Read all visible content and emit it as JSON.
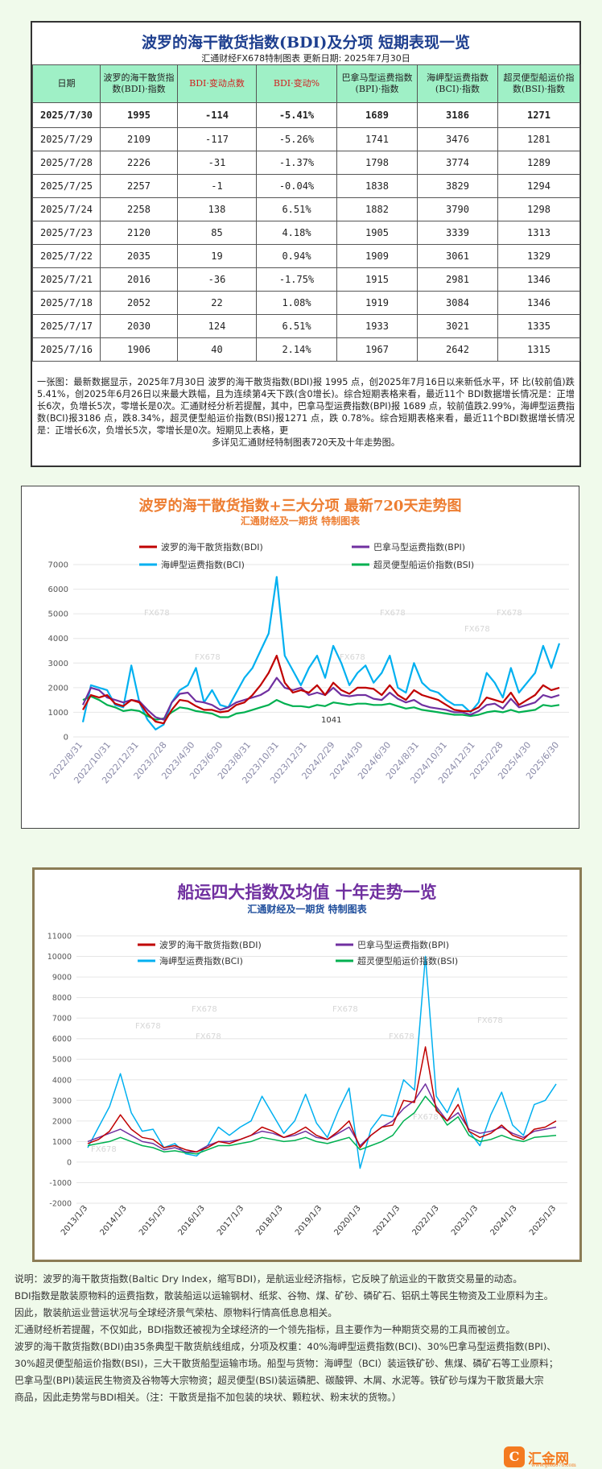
{
  "table": {
    "title": "波罗的海干散货指数(BDI)及分项 短期表现一览",
    "subtitle": "汇通财经FX678特制图表 更新日期: 2025年7月30日",
    "headers": [
      "日期",
      "波罗的海干散货指数(BDI)·指数",
      "BDI·变动点数",
      "BDI·变动%",
      "巴拿马型运费指数(BPI)·指数",
      "海岬型运费指数(BCI)·指数",
      "超灵便型船运价指数(BSI)·指数"
    ],
    "rows": [
      [
        "2025/7/30",
        "1995",
        "-114",
        "-5.41%",
        "1689",
        "3186",
        "1271"
      ],
      [
        "2025/7/29",
        "2109",
        "-117",
        "-5.26%",
        "1741",
        "3476",
        "1281"
      ],
      [
        "2025/7/28",
        "2226",
        "-31",
        "-1.37%",
        "1798",
        "3774",
        "1289"
      ],
      [
        "2025/7/25",
        "2257",
        "-1",
        "-0.04%",
        "1838",
        "3829",
        "1294"
      ],
      [
        "2025/7/24",
        "2258",
        "138",
        "6.51%",
        "1882",
        "3790",
        "1298"
      ],
      [
        "2025/7/23",
        "2120",
        "85",
        "4.18%",
        "1905",
        "3339",
        "1313"
      ],
      [
        "2025/7/22",
        "2035",
        "19",
        "0.94%",
        "1909",
        "3061",
        "1329"
      ],
      [
        "2025/7/21",
        "2016",
        "-36",
        "-1.75%",
        "1915",
        "2981",
        "1346"
      ],
      [
        "2025/7/18",
        "2052",
        "22",
        "1.08%",
        "1919",
        "3084",
        "1346"
      ],
      [
        "2025/7/17",
        "2030",
        "124",
        "6.51%",
        "1933",
        "3021",
        "1335"
      ],
      [
        "2025/7/16",
        "1906",
        "40",
        "2.14%",
        "1967",
        "2642",
        "1315"
      ]
    ],
    "note_lines": [
      "一张图：最新数据显示，2025年7月30日 波罗的海干散货指数(BDI)报 1995 点，创2025年7月16日以来新低水平，环",
      "比(较前值)跌5.41%，创2025年6月26日以来最大跌幅，且为连续第4天下跌(含0增长)。综合短期表格来看，最近11个",
      "BDI数据增长情况是：正增长6次，负增长5次，零增长是0次。汇通财经分析若提醒，其中，巴拿马型运费指数(BPI)报",
      "1689 点，较前值跌2.99%，海岬型运费指数(BCI)报3186 点，跌8.34%，超灵便型船运价指数(BSI)报1271 点，跌",
      "0.78%。综合短期表格来看，最近11个BDI数据增长情况是：正增长6次，负增长5次，零增长是0次。短期见上表格，更",
      "多详见汇通财经特制图表720天及十年走势图。"
    ]
  },
  "colors": {
    "bdi": "#c00000",
    "bpi": "#7030a0",
    "bci": "#00b0f0",
    "bsi": "#00b050",
    "title1": "#ed7d31",
    "title2": "#7030a0",
    "sub": "#1f4e9c"
  },
  "chart_data": [
    {
      "type": "line",
      "title": "波罗的海干散货指数+三大分项 最新720天走势图",
      "subtitle": "汇通财经及一期货 特制图表",
      "legend": [
        "波罗的海干散货指数(BDI)",
        "巴拿马型运费指数(BPI)",
        "海岬型运费指数(BCI)",
        "超灵便型船运价指数(BSI)"
      ],
      "legend_position": "top",
      "ylim": [
        0,
        7000
      ],
      "yticks": [
        "0",
        "1000",
        "2000",
        "3000",
        "4000",
        "5000",
        "6000",
        "7000"
      ],
      "xticks": [
        "2022/8/31",
        "2022/10/31",
        "2022/12/31",
        "2023/2/28",
        "2023/4/30",
        "2023/6/30",
        "2023/8/31",
        "2023/10/31",
        "2023/12/31",
        "2024/2/29",
        "2024/4/30",
        "2024/6/30",
        "2024/8/31",
        "2024/10/31",
        "2024/12/31",
        "2025/2/28",
        "2025/4/30",
        "2025/6/30"
      ],
      "annotation": "1041",
      "watermark": "FX678",
      "grid": true,
      "series": [
        {
          "name": "波罗的海干散货指数(BDI)",
          "values": [
            1100,
            1700,
            1600,
            1700,
            1350,
            1250,
            1500,
            1400,
            950,
            620,
            550,
            1100,
            1500,
            1450,
            1250,
            1100,
            1100,
            1000,
            1050,
            1300,
            1400,
            1700,
            2100,
            2600,
            3300,
            2200,
            1800,
            1900,
            1800,
            2100,
            1700,
            2200,
            1900,
            1750,
            2000,
            2000,
            1950,
            1700,
            2100,
            1700,
            1500,
            1900,
            1700,
            1600,
            1500,
            1300,
            1100,
            1050,
            1041,
            1200,
            1600,
            1500,
            1400,
            1800,
            1300,
            1500,
            1700,
            2100,
            1900,
            2000
          ]
        },
        {
          "name": "巴拿马型运费指数(BPI)",
          "values": [
            1300,
            2000,
            1900,
            1600,
            1500,
            1400,
            1500,
            1450,
            1100,
            800,
            700,
            1400,
            1750,
            1800,
            1450,
            1400,
            1300,
            1100,
            1200,
            1400,
            1500,
            1600,
            1700,
            1900,
            2400,
            2000,
            1900,
            2000,
            1700,
            1800,
            1700,
            2000,
            1700,
            1650,
            1700,
            1700,
            1550,
            1500,
            1800,
            1550,
            1400,
            1500,
            1300,
            1200,
            1150,
            1100,
            1000,
            1000,
            900,
            1050,
            1300,
            1350,
            1150,
            1550,
            1200,
            1300,
            1400,
            1700,
            1600,
            1700
          ]
        },
        {
          "name": "海岬型运费指数(BCI)",
          "values": [
            600,
            2100,
            2000,
            1900,
            1300,
            1200,
            2900,
            1400,
            700,
            300,
            500,
            1400,
            1900,
            2100,
            2800,
            1400,
            1900,
            1300,
            1200,
            1800,
            2400,
            2800,
            3500,
            4200,
            6500,
            3300,
            2700,
            2100,
            2800,
            3300,
            2400,
            3700,
            3000,
            2100,
            2600,
            2900,
            2200,
            2600,
            3300,
            2000,
            1800,
            3000,
            2200,
            1900,
            1800,
            1500,
            1300,
            1300,
            1000,
            1400,
            2600,
            2200,
            1600,
            2800,
            1800,
            2200,
            2600,
            3700,
            2800,
            3800
          ]
        },
        {
          "name": "超灵便型船运价指数(BSI)",
          "values": [
            1500,
            1650,
            1500,
            1300,
            1200,
            1050,
            1100,
            1050,
            850,
            700,
            750,
            1000,
            1200,
            1150,
            1050,
            1000,
            950,
            800,
            800,
            950,
            1000,
            1100,
            1200,
            1300,
            1500,
            1350,
            1250,
            1250,
            1200,
            1300,
            1250,
            1400,
            1350,
            1300,
            1350,
            1350,
            1300,
            1300,
            1350,
            1250,
            1150,
            1200,
            1100,
            1050,
            1000,
            950,
            900,
            900,
            850,
            900,
            1000,
            1050,
            1000,
            1100,
            1000,
            1050,
            1100,
            1300,
            1250,
            1300
          ]
        }
      ]
    },
    {
      "type": "line",
      "title": "船运四大指数及均值 十年走势一览",
      "subtitle": "汇通财经及一期货 特制图表",
      "legend": [
        "波罗的海干散货指数(BDI)",
        "巴拿马型运费指数(BPI)",
        "海岬型运费指数(BCI)",
        "超灵便型船运价指数(BSI)"
      ],
      "legend_position": "top",
      "ylim": [
        -2000,
        11000
      ],
      "yticks": [
        "-2000",
        "-1000",
        "0",
        "1000",
        "2000",
        "3000",
        "4000",
        "5000",
        "6000",
        "7000",
        "8000",
        "9000",
        "10000",
        "11000"
      ],
      "xticks": [
        "2013/1/3",
        "2014/1/3",
        "2015/1/3",
        "2016/1/3",
        "2017/1/3",
        "2018/1/3",
        "2019/1/3",
        "2020/1/3",
        "2021/1/3",
        "2022/1/3",
        "2023/1/3",
        "2024/1/3",
        "2025/1/3"
      ],
      "watermark": "FX678",
      "grid": true,
      "series": [
        {
          "name": "波罗的海干散货指数(BDI)",
          "values": [
            900,
            1100,
            1500,
            2300,
            1600,
            1200,
            1100,
            700,
            800,
            600,
            500,
            700,
            1000,
            900,
            1100,
            1300,
            1700,
            1500,
            1200,
            1400,
            1700,
            1300,
            1100,
            1500,
            2000,
            700,
            1300,
            1700,
            1800,
            3000,
            2900,
            5600,
            2500,
            2000,
            2800,
            1500,
            1200,
            1400,
            1800,
            1300,
            1100,
            1600,
            1700,
            2000
          ]
        },
        {
          "name": "巴拿马型运费指数(BPI)",
          "values": [
            1000,
            1200,
            1400,
            1600,
            1300,
            1000,
            900,
            600,
            700,
            500,
            500,
            800,
            1000,
            1000,
            1100,
            1300,
            1500,
            1400,
            1200,
            1300,
            1500,
            1200,
            1100,
            1400,
            1700,
            800,
            1300,
            1700,
            2000,
            2600,
            3000,
            3800,
            2700,
            2000,
            2400,
            1600,
            1400,
            1500,
            1700,
            1400,
            1200,
            1500,
            1600,
            1700
          ]
        },
        {
          "name": "海岬型运费指数(BCI)",
          "values": [
            700,
            1700,
            2700,
            4300,
            2400,
            1500,
            1600,
            700,
            900,
            400,
            300,
            800,
            1700,
            1300,
            1700,
            2000,
            3200,
            2300,
            1400,
            2000,
            3300,
            1900,
            1200,
            2500,
            3600,
            -300,
            1600,
            2300,
            2200,
            4000,
            3500,
            10000,
            3200,
            2400,
            3600,
            1500,
            800,
            2300,
            3400,
            1800,
            1300,
            2800,
            3000,
            3800
          ]
        },
        {
          "name": "超灵便型船运价指数(BSI)",
          "values": [
            800,
            900,
            1000,
            1200,
            1000,
            800,
            700,
            500,
            550,
            450,
            400,
            600,
            800,
            800,
            900,
            1000,
            1200,
            1100,
            1000,
            1050,
            1200,
            1000,
            900,
            1050,
            1200,
            600,
            800,
            1000,
            1300,
            2000,
            2400,
            3200,
            2600,
            1800,
            2200,
            1300,
            1000,
            1100,
            1300,
            1100,
            1000,
            1200,
            1250,
            1300
          ]
        }
      ]
    }
  ],
  "description": [
    "说明：波罗的海干散货指数(Baltic Dry Index，缩写BDI)，是航运业经济指标，它反映了航运业的干散货交易量的动态。",
    "BDI指数是散装原物料的运费指数，散装船运以运输钢材、纸浆、谷物、煤、矿砂、磷矿石、铝矾土等民生物资及工业原料为主。",
    "因此，散装航运业营运状况与全球经济景气荣枯、原物料行情高低息息相关。",
    "汇通财经析若提醒，不仅如此，BDI指数还被视为全球经济的一个领先指标，且主要作为一种期货交易的工具而被创立。",
    "波罗的海干散货指数(BDI)由35条典型干散货航线组成，分项及权重：40%海岬型运费指数(BCI)、30%巴拿马型运费指数(BPI)、",
    "30%超灵便型船运价指数(BSI)，三大干散货船型运输市场。船型与货物：海岬型（BCI）装运铁矿砂、焦煤、磷矿石等工业原料；",
    "巴拿马型(BPI)装运民生物资及谷物等大宗物资；超灵便型(BSI)装运磷肥、碳酸钾、木屑、水泥等。铁矿砂与煤为干散货最大宗",
    "商品，因此走势常与BDI相关。（注：干散货是指不加包装的块状、颗粒状、粉末状的货物。）"
  ],
  "logo": {
    "mark": "C",
    "name": "汇金网",
    "url": "www.gold678.com"
  }
}
